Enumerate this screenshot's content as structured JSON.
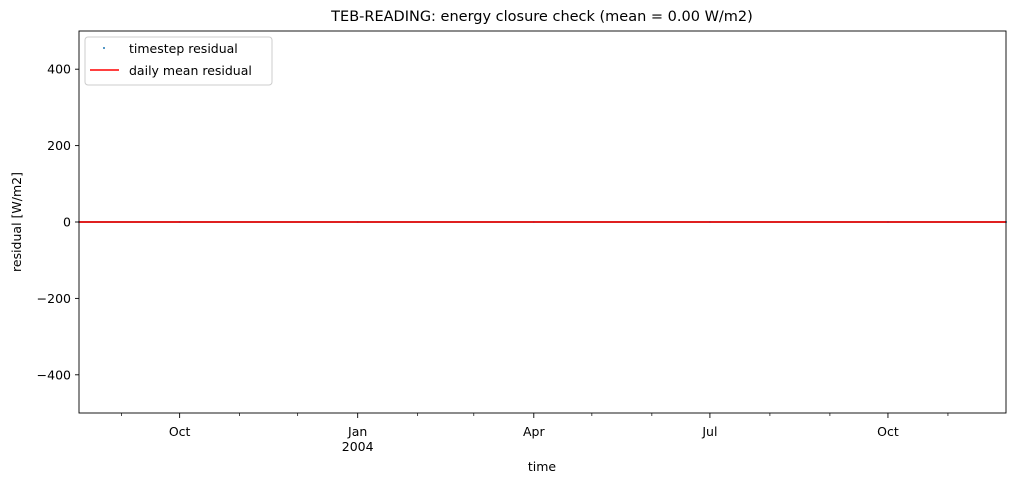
{
  "chart_data": {
    "type": "line",
    "title": "TEB-READING: energy closure check (mean = 0.00 W/m2)",
    "xlabel": "time",
    "ylabel": "residual [W/m2]",
    "xlim": [
      "2003-08-10",
      "2004-12-01"
    ],
    "ylim": [
      -500,
      500
    ],
    "grid": false,
    "legend_position": "top-left",
    "y_ticks": [
      {
        "value": 400,
        "label": "400"
      },
      {
        "value": 200,
        "label": "200"
      },
      {
        "value": 0,
        "label": "0"
      },
      {
        "value": -200,
        "label": "−200"
      },
      {
        "value": -400,
        "label": "−400"
      }
    ],
    "x_major_ticks": [
      {
        "date": "2003-10-01",
        "label": "Oct",
        "sublabel": ""
      },
      {
        "date": "2004-01-01",
        "label": "Jan",
        "sublabel": "2004"
      },
      {
        "date": "2004-04-01",
        "label": "Apr",
        "sublabel": ""
      },
      {
        "date": "2004-07-01",
        "label": "Jul",
        "sublabel": ""
      },
      {
        "date": "2004-10-01",
        "label": "Oct",
        "sublabel": ""
      }
    ],
    "x_minor_ticks": [
      "2003-09-01",
      "2003-11-01",
      "2003-12-01",
      "2004-02-01",
      "2004-03-01",
      "2004-05-01",
      "2004-06-01",
      "2004-08-01",
      "2004-09-01",
      "2004-11-01"
    ],
    "series": [
      {
        "name": "timestep residual",
        "style": "points",
        "color": "#1f77b4",
        "x": [
          "2003-08-10",
          "2003-10-01",
          "2004-01-01",
          "2004-04-01",
          "2004-07-01",
          "2004-10-01",
          "2004-12-01"
        ],
        "values": [
          0,
          0,
          0,
          0,
          0,
          0,
          0
        ]
      },
      {
        "name": "daily mean residual",
        "style": "line",
        "color": "#ff0000",
        "x": [
          "2003-08-10",
          "2004-12-01"
        ],
        "values": [
          0,
          0
        ]
      }
    ],
    "reference_line": {
      "value": 0,
      "color": "#000000"
    }
  }
}
